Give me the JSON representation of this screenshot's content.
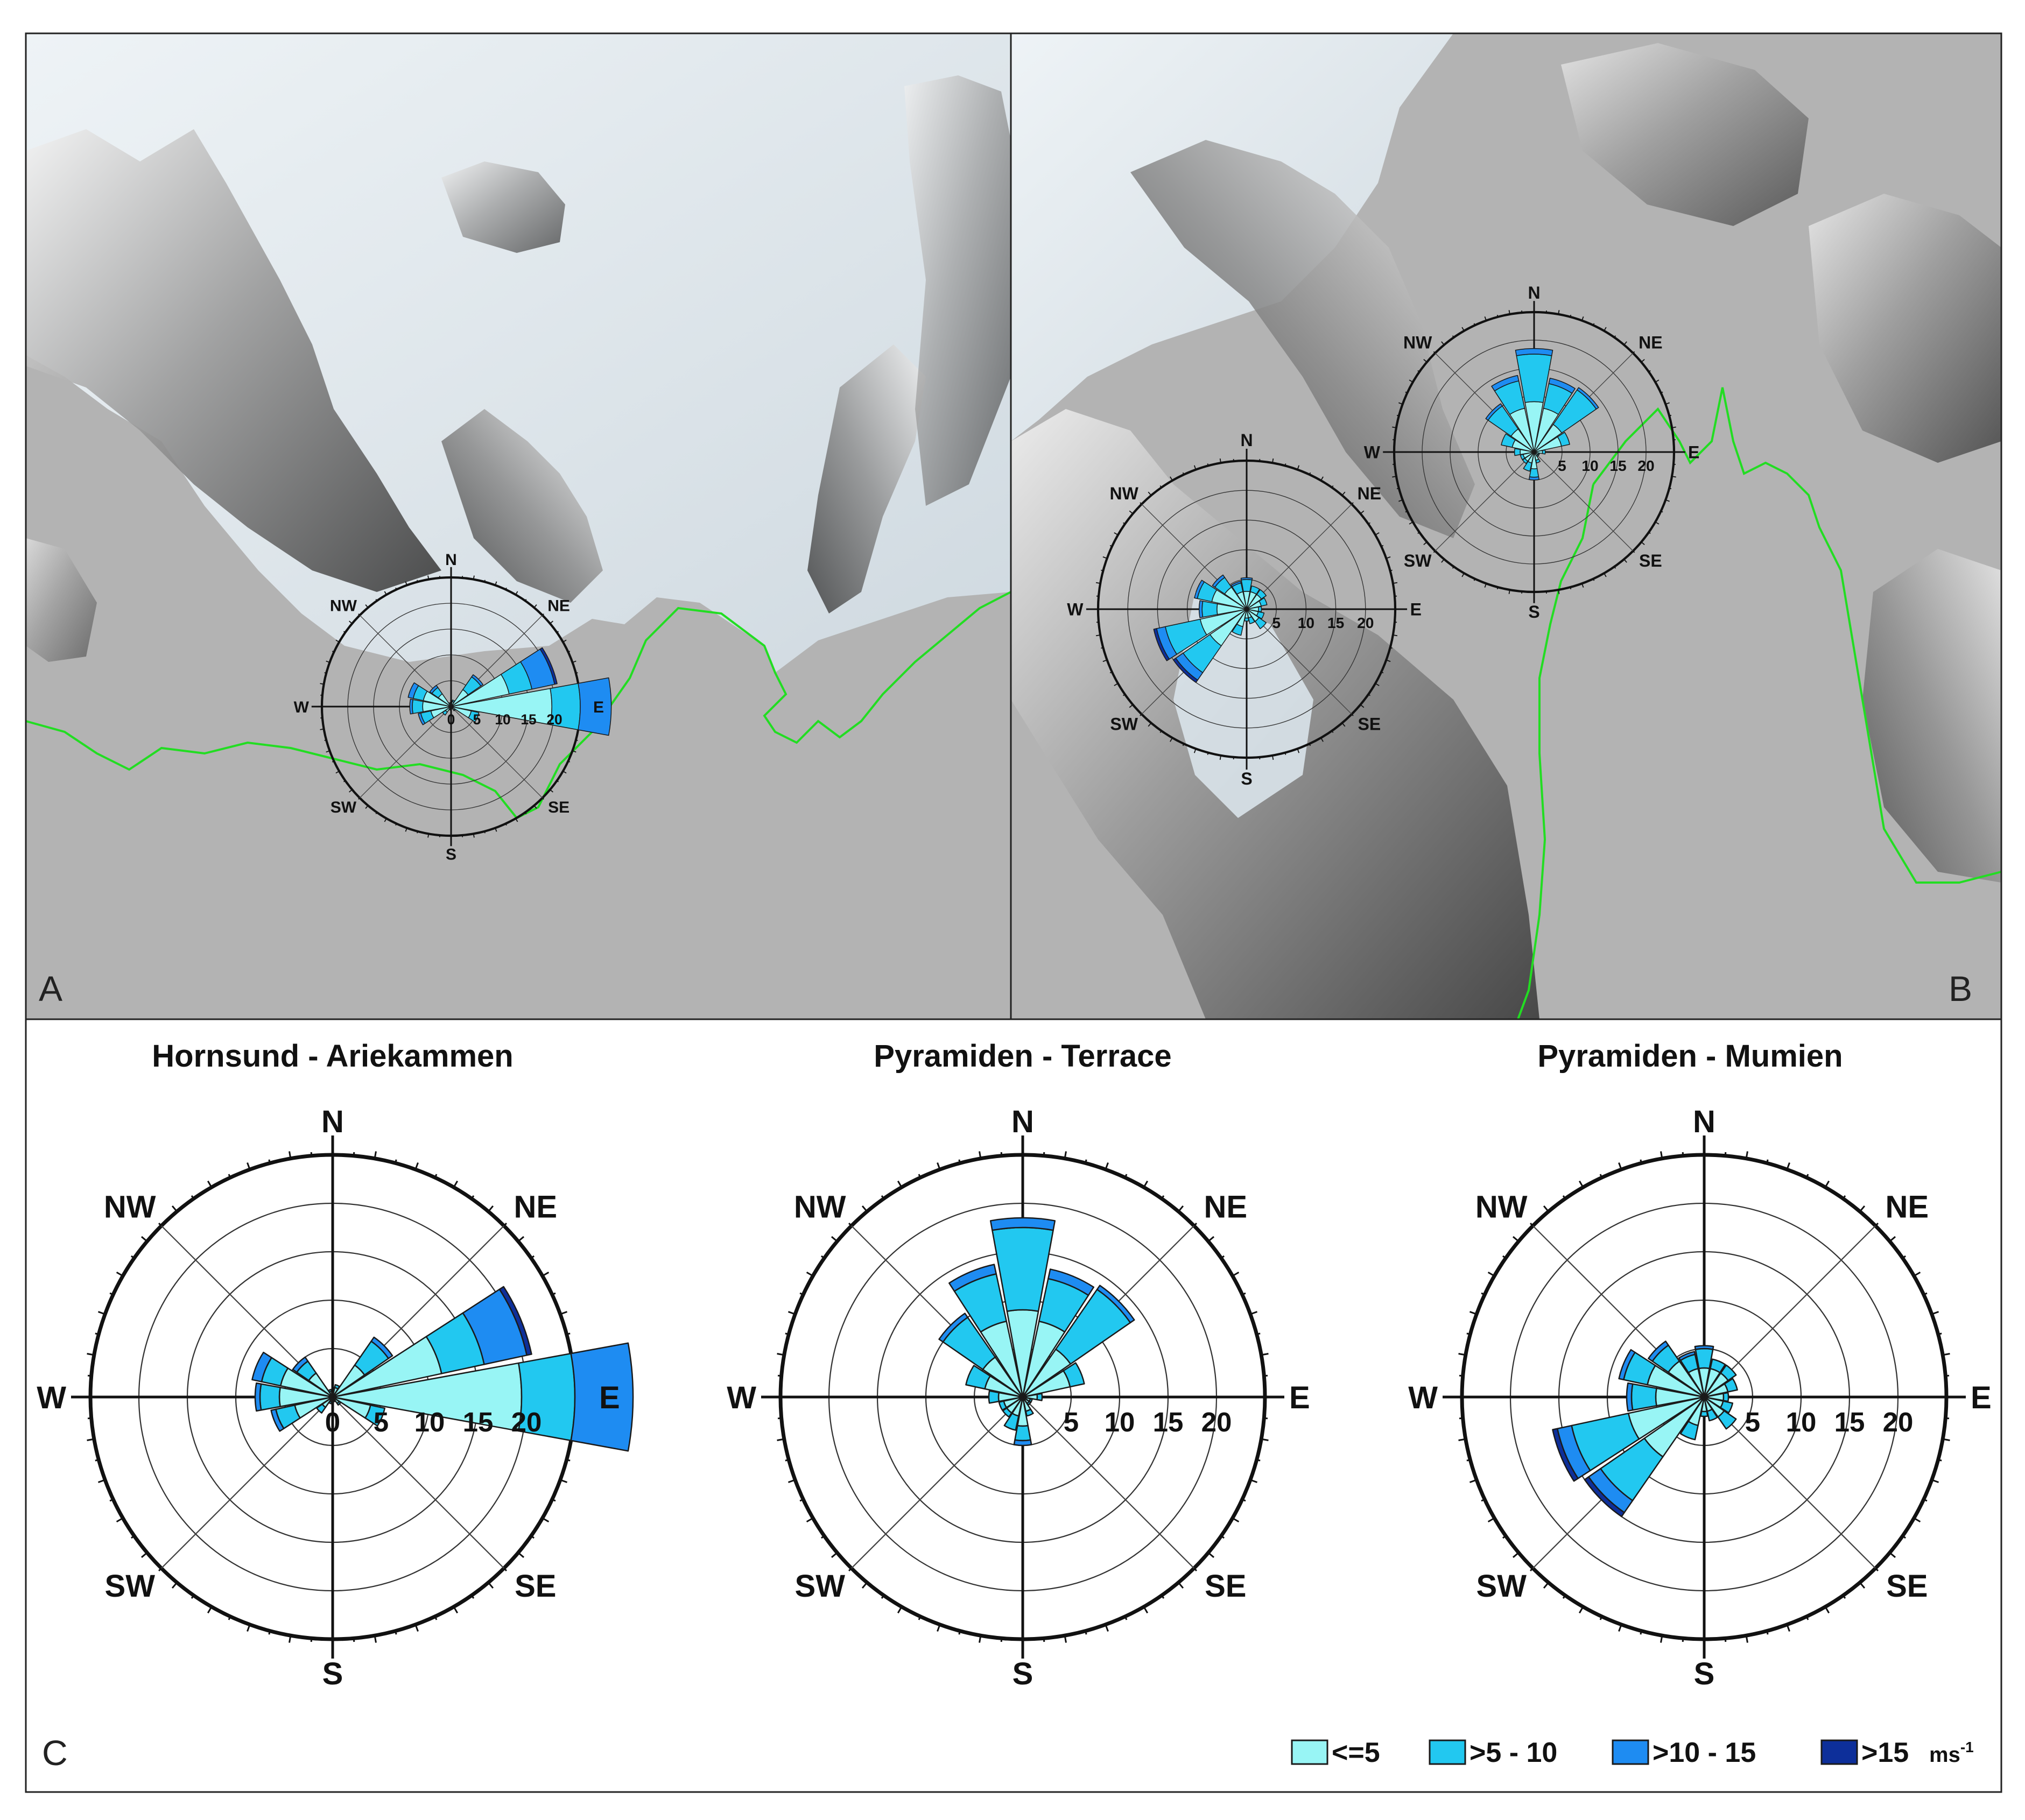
{
  "panels": {
    "a_label": "A",
    "b_label": "B",
    "c_label": "C"
  },
  "directions": [
    "N",
    "NE",
    "E",
    "SE",
    "S",
    "SW",
    "W",
    "NW"
  ],
  "ring_labels": [
    "5",
    "10",
    "15",
    "20"
  ],
  "zero_label": "0",
  "legend": {
    "items": [
      "<=5",
      ">5 - 10",
      ">10 - 15",
      ">15"
    ],
    "unit": "ms",
    "unit_sup": "-1"
  },
  "colors": {
    "c1": "#98F5F5",
    "c2": "#22C8F0",
    "c3": "#1E8CF2",
    "c4": "#0D2F9A",
    "outline": "#1a1a1a",
    "coastline": "#22DD22",
    "sea": "#b3b3b3",
    "glacier": "#dde6ec"
  },
  "chart_data": [
    {
      "type": "windrose",
      "title": "Hornsund - Ariekammen",
      "show_zero": true,
      "rlim": [
        0,
        25
      ],
      "sector_width_deg": 22.5,
      "classes": [
        "<=5",
        ">5 - 10",
        ">10 - 15",
        ">15"
      ],
      "sectors": [
        {
          "dir": 0,
          "v": [
            0.3,
            0.1,
            0,
            0
          ]
        },
        {
          "dir": 22.5,
          "v": [
            1.0,
            0.3,
            0,
            0
          ]
        },
        {
          "dir": 45,
          "v": [
            4.0,
            3.0,
            0.5,
            0
          ]
        },
        {
          "dir": 67.5,
          "v": [
            11.5,
            4.5,
            4.5,
            0.5
          ]
        },
        {
          "dir": 90,
          "v": [
            19.5,
            5.5,
            6.0,
            0
          ]
        },
        {
          "dir": 112.5,
          "v": [
            4.0,
            1.5,
            0,
            0
          ]
        },
        {
          "dir": 135,
          "v": [
            0.8,
            0.2,
            0,
            0
          ]
        },
        {
          "dir": 157.5,
          "v": [
            0.4,
            0.1,
            0,
            0
          ]
        },
        {
          "dir": 180,
          "v": [
            0.4,
            0.1,
            0,
            0
          ]
        },
        {
          "dir": 202.5,
          "v": [
            0.5,
            0.2,
            0,
            0
          ]
        },
        {
          "dir": 225,
          "v": [
            1.3,
            0.7,
            0,
            0
          ]
        },
        {
          "dir": 247.5,
          "v": [
            4.0,
            2.0,
            0.5,
            0
          ]
        },
        {
          "dir": 270,
          "v": [
            5.5,
            2.0,
            0.5,
            0
          ]
        },
        {
          "dir": 292.5,
          "v": [
            5.5,
            2.0,
            1.0,
            0
          ]
        },
        {
          "dir": 315,
          "v": [
            3.0,
            1.5,
            0.5,
            0
          ]
        },
        {
          "dir": 337.5,
          "v": [
            0.6,
            0.2,
            0,
            0
          ]
        }
      ]
    },
    {
      "type": "windrose",
      "title": "Pyramiden - Terrace",
      "show_zero": false,
      "rlim": [
        0,
        25
      ],
      "sector_width_deg": 22.5,
      "classes": [
        "<=5",
        ">5 - 10",
        ">10 - 15",
        ">15"
      ],
      "sectors": [
        {
          "dir": 0,
          "v": [
            9.0,
            8.5,
            1.0,
            0
          ]
        },
        {
          "dir": 22.5,
          "v": [
            8.0,
            4.5,
            1.0,
            0
          ]
        },
        {
          "dir": 45,
          "v": [
            6.0,
            7.5,
            0.5,
            0
          ]
        },
        {
          "dir": 67.5,
          "v": [
            5.0,
            1.5,
            0,
            0
          ]
        },
        {
          "dir": 90,
          "v": [
            1.5,
            0.5,
            0,
            0
          ]
        },
        {
          "dir": 112.5,
          "v": [
            0.8,
            0.2,
            0,
            0
          ]
        },
        {
          "dir": 135,
          "v": [
            0.8,
            0.2,
            0,
            0
          ]
        },
        {
          "dir": 157.5,
          "v": [
            1.5,
            0.5,
            0,
            0
          ]
        },
        {
          "dir": 180,
          "v": [
            3.0,
            1.5,
            0.5,
            0
          ]
        },
        {
          "dir": 202.5,
          "v": [
            2.0,
            1.5,
            0,
            0
          ]
        },
        {
          "dir": 225,
          "v": [
            2.0,
            0.5,
            0,
            0
          ]
        },
        {
          "dir": 247.5,
          "v": [
            2.0,
            0.5,
            0,
            0
          ]
        },
        {
          "dir": 270,
          "v": [
            2.5,
            1.0,
            0,
            0
          ]
        },
        {
          "dir": 292.5,
          "v": [
            4.0,
            2.0,
            0,
            0
          ]
        },
        {
          "dir": 315,
          "v": [
            5.0,
            5.0,
            0.5,
            0
          ]
        },
        {
          "dir": 337.5,
          "v": [
            8.0,
            5.0,
            1.0,
            0
          ]
        }
      ]
    },
    {
      "type": "windrose",
      "title": "Pyramiden - Mumien",
      "show_zero": false,
      "rlim": [
        0,
        25
      ],
      "sector_width_deg": 22.5,
      "classes": [
        "<=5",
        ">5 - 10",
        ">10 - 15",
        ">15"
      ],
      "sectors": [
        {
          "dir": 0,
          "v": [
            3.0,
            2.0,
            0.3,
            0
          ]
        },
        {
          "dir": 22.5,
          "v": [
            3.0,
            1.0,
            0,
            0
          ]
        },
        {
          "dir": 45,
          "v": [
            3.0,
            1.0,
            0,
            0
          ]
        },
        {
          "dir": 67.5,
          "v": [
            2.5,
            1.0,
            0,
            0
          ]
        },
        {
          "dir": 90,
          "v": [
            2.0,
            0.5,
            0,
            0
          ]
        },
        {
          "dir": 112.5,
          "v": [
            2.0,
            1.0,
            0,
            0
          ]
        },
        {
          "dir": 135,
          "v": [
            2.5,
            1.5,
            0,
            0
          ]
        },
        {
          "dir": 157.5,
          "v": [
            1.5,
            1.0,
            0,
            0
          ]
        },
        {
          "dir": 180,
          "v": [
            1.5,
            0.5,
            0,
            0
          ]
        },
        {
          "dir": 202.5,
          "v": [
            3.0,
            1.5,
            0,
            0
          ]
        },
        {
          "dir": 225,
          "v": [
            7.5,
            5.5,
            1.5,
            0.5
          ]
        },
        {
          "dir": 247.5,
          "v": [
            8.0,
            6.0,
            1.5,
            0.5
          ]
        },
        {
          "dir": 270,
          "v": [
            5.0,
            2.5,
            0.5,
            0
          ]
        },
        {
          "dir": 292.5,
          "v": [
            6.0,
            2.5,
            0.5,
            0
          ]
        },
        {
          "dir": 315,
          "v": [
            4.5,
            2.0,
            0.5,
            0
          ]
        },
        {
          "dir": 337.5,
          "v": [
            3.0,
            1.5,
            0.3,
            0
          ]
        }
      ]
    }
  ]
}
